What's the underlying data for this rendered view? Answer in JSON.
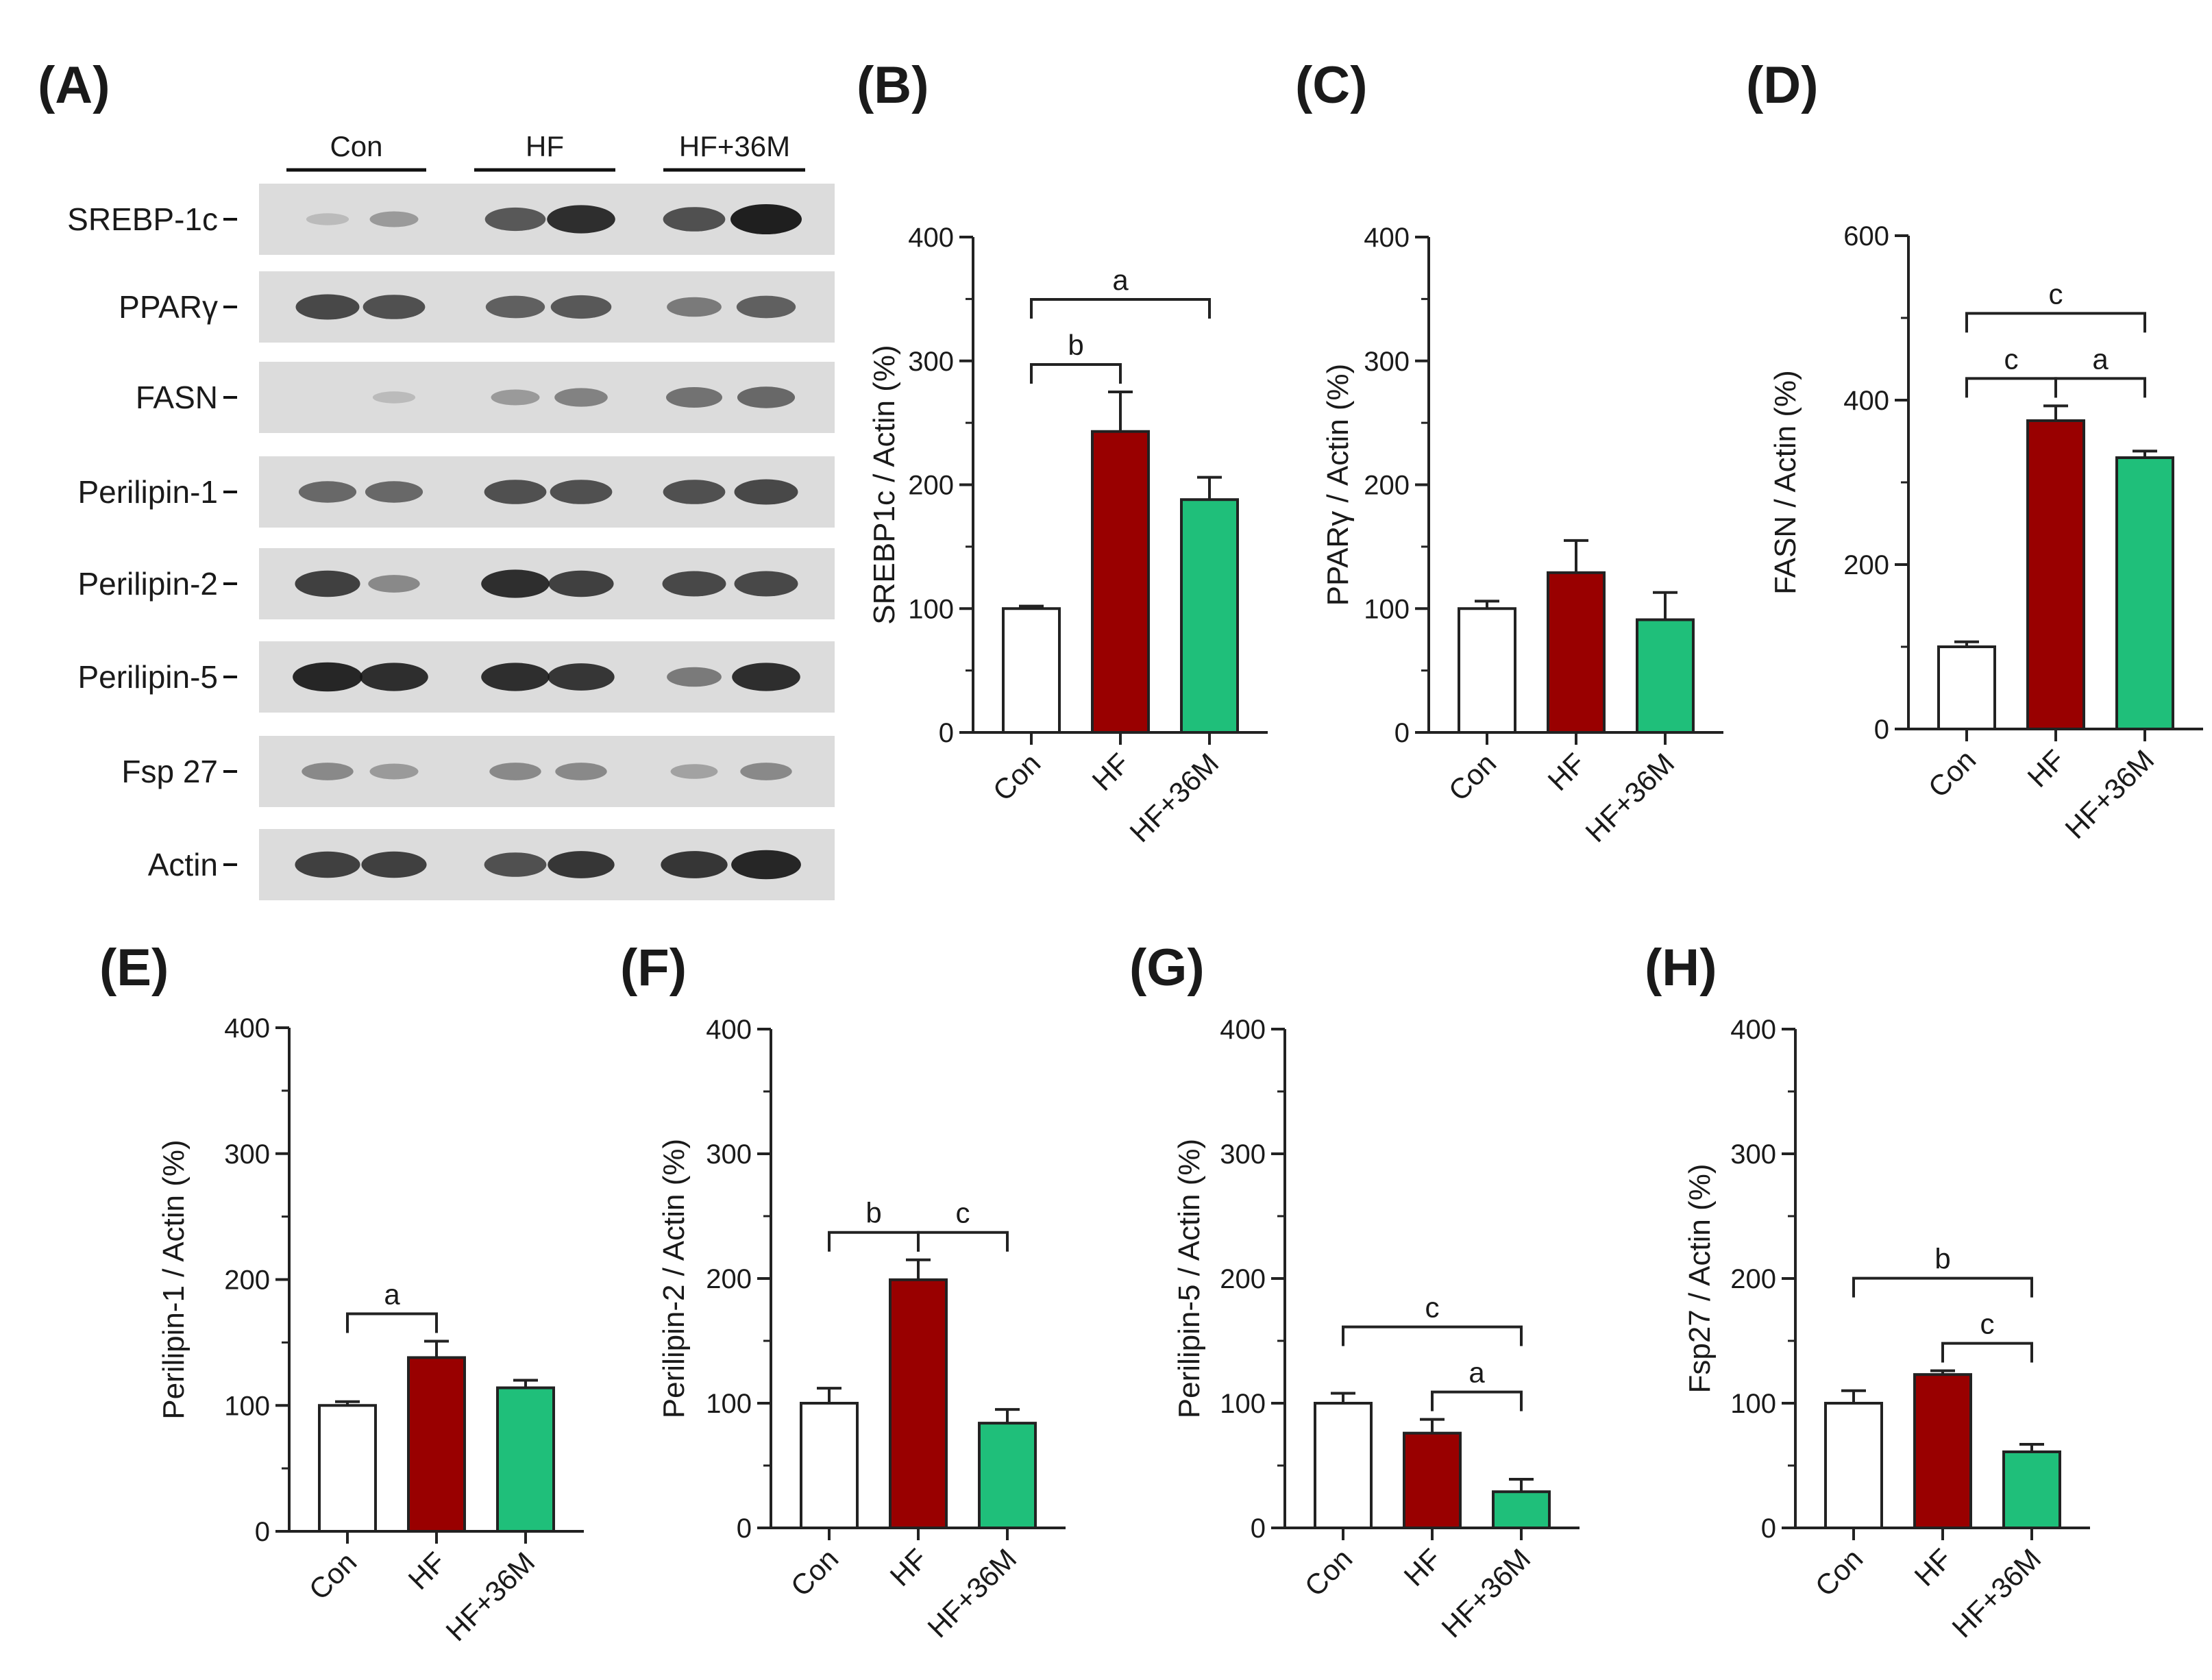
{
  "figure": {
    "panel_letters": [
      "(A)",
      "(B)",
      "(C)",
      "(D)",
      "(E)",
      "(F)",
      "(G)",
      "(H)"
    ],
    "colors": {
      "Con": "#ffffff",
      "HF": "#990000",
      "HF+36M": "#1fbf7a",
      "axis": "#222222",
      "blot_background": "#dcdcdc",
      "band": "#141414"
    }
  },
  "western_blot": {
    "group_labels": [
      "Con",
      "HF",
      "HF+36M"
    ],
    "rows": [
      {
        "label": "SREBP-1c",
        "band_intensity": [
          0.05,
          0.25,
          0.65,
          0.9,
          0.7,
          1.0
        ]
      },
      {
        "label": "PPARγ",
        "band_intensity": [
          0.75,
          0.7,
          0.6,
          0.65,
          0.45,
          0.6
        ]
      },
      {
        "label": "FASN",
        "band_intensity": [
          0.0,
          0.05,
          0.25,
          0.4,
          0.5,
          0.55
        ]
      },
      {
        "label": "Perilipin-1",
        "band_intensity": [
          0.55,
          0.55,
          0.7,
          0.7,
          0.7,
          0.75
        ]
      },
      {
        "label": "Perilipin-2",
        "band_intensity": [
          0.8,
          0.35,
          0.9,
          0.8,
          0.75,
          0.75
        ]
      },
      {
        "label": "Perilipin-5",
        "band_intensity": [
          0.95,
          0.9,
          0.9,
          0.85,
          0.45,
          0.9
        ]
      },
      {
        "label": "Fsp 27",
        "band_intensity": [
          0.35,
          0.25,
          0.35,
          0.35,
          0.2,
          0.35
        ]
      },
      {
        "label": "Actin",
        "band_intensity": [
          0.8,
          0.8,
          0.7,
          0.85,
          0.85,
          0.95
        ]
      }
    ]
  },
  "chart_data": [
    {
      "type": "bar",
      "panel": "(B)",
      "categories": [
        "Con",
        "HF",
        "HF+36M"
      ],
      "values": [
        100,
        243,
        188
      ],
      "errors": [
        2,
        32,
        18
      ],
      "ylabel": "SREBP1c / Actin (%)",
      "ylim": [
        0,
        400
      ],
      "major_ticks": [
        0,
        100,
        200,
        300,
        400
      ],
      "significance": [
        {
          "from": "Con",
          "to": "HF",
          "label": "b"
        },
        {
          "from": "Con",
          "to": "HF+36M",
          "label": "a"
        }
      ]
    },
    {
      "type": "bar",
      "panel": "(C)",
      "categories": [
        "Con",
        "HF",
        "HF+36M"
      ],
      "values": [
        100,
        129,
        91
      ],
      "errors": [
        6,
        26,
        22
      ],
      "ylabel": "PPARγ / Actin (%)",
      "ylim": [
        0,
        400
      ],
      "major_ticks": [
        0,
        100,
        200,
        300,
        400
      ],
      "significance": []
    },
    {
      "type": "bar",
      "panel": "(D)",
      "categories": [
        "Con",
        "HF",
        "HF+36M"
      ],
      "values": [
        100,
        375,
        330
      ],
      "errors": [
        6,
        18,
        8
      ],
      "ylabel": "FASN / Actin (%)",
      "ylim": [
        0,
        600
      ],
      "major_ticks": [
        0,
        200,
        400,
        600
      ],
      "significance": [
        {
          "from": "Con",
          "to": "HF",
          "label": "c"
        },
        {
          "from": "HF",
          "to": "HF+36M",
          "label": "a"
        },
        {
          "from": "Con",
          "to": "HF+36M",
          "label": "c"
        }
      ]
    },
    {
      "type": "bar",
      "panel": "(E)",
      "categories": [
        "Con",
        "HF",
        "HF+36M"
      ],
      "values": [
        100,
        138,
        114
      ],
      "errors": [
        3,
        13,
        6
      ],
      "ylabel": "Perilipin-1 / Actin (%)",
      "ylim": [
        0,
        400
      ],
      "major_ticks": [
        0,
        100,
        200,
        300,
        400
      ],
      "significance": [
        {
          "from": "Con",
          "to": "HF",
          "label": "a"
        }
      ]
    },
    {
      "type": "bar",
      "panel": "(F)",
      "categories": [
        "Con",
        "HF",
        "HF+36M"
      ],
      "values": [
        100,
        199,
        84
      ],
      "errors": [
        12,
        16,
        11
      ],
      "ylabel": "Perilipin-2 / Actin (%)",
      "ylim": [
        0,
        400
      ],
      "major_ticks": [
        0,
        100,
        200,
        300,
        400
      ],
      "significance": [
        {
          "from": "Con",
          "to": "HF",
          "label": "b"
        },
        {
          "from": "HF",
          "to": "HF+36M",
          "label": "c"
        }
      ]
    },
    {
      "type": "bar",
      "panel": "(G)",
      "categories": [
        "Con",
        "HF",
        "HF+36M"
      ],
      "values": [
        100,
        76,
        29
      ],
      "errors": [
        8,
        11,
        10
      ],
      "ylabel": "Perilipin-5 / Actin (%)",
      "ylim": [
        0,
        400
      ],
      "major_ticks": [
        0,
        100,
        200,
        300,
        400
      ],
      "significance": [
        {
          "from": "HF",
          "to": "HF+36M",
          "label": "a"
        },
        {
          "from": "Con",
          "to": "HF+36M",
          "label": "c"
        }
      ]
    },
    {
      "type": "bar",
      "panel": "(H)",
      "categories": [
        "Con",
        "HF",
        "HF+36M"
      ],
      "values": [
        100,
        123,
        61
      ],
      "errors": [
        10,
        3,
        6
      ],
      "ylabel": "Fsp27 / Actin (%)",
      "ylim": [
        0,
        400
      ],
      "major_ticks": [
        0,
        100,
        200,
        300,
        400
      ],
      "significance": [
        {
          "from": "HF",
          "to": "HF+36M",
          "label": "c"
        },
        {
          "from": "Con",
          "to": "HF+36M",
          "label": "b"
        }
      ]
    }
  ]
}
